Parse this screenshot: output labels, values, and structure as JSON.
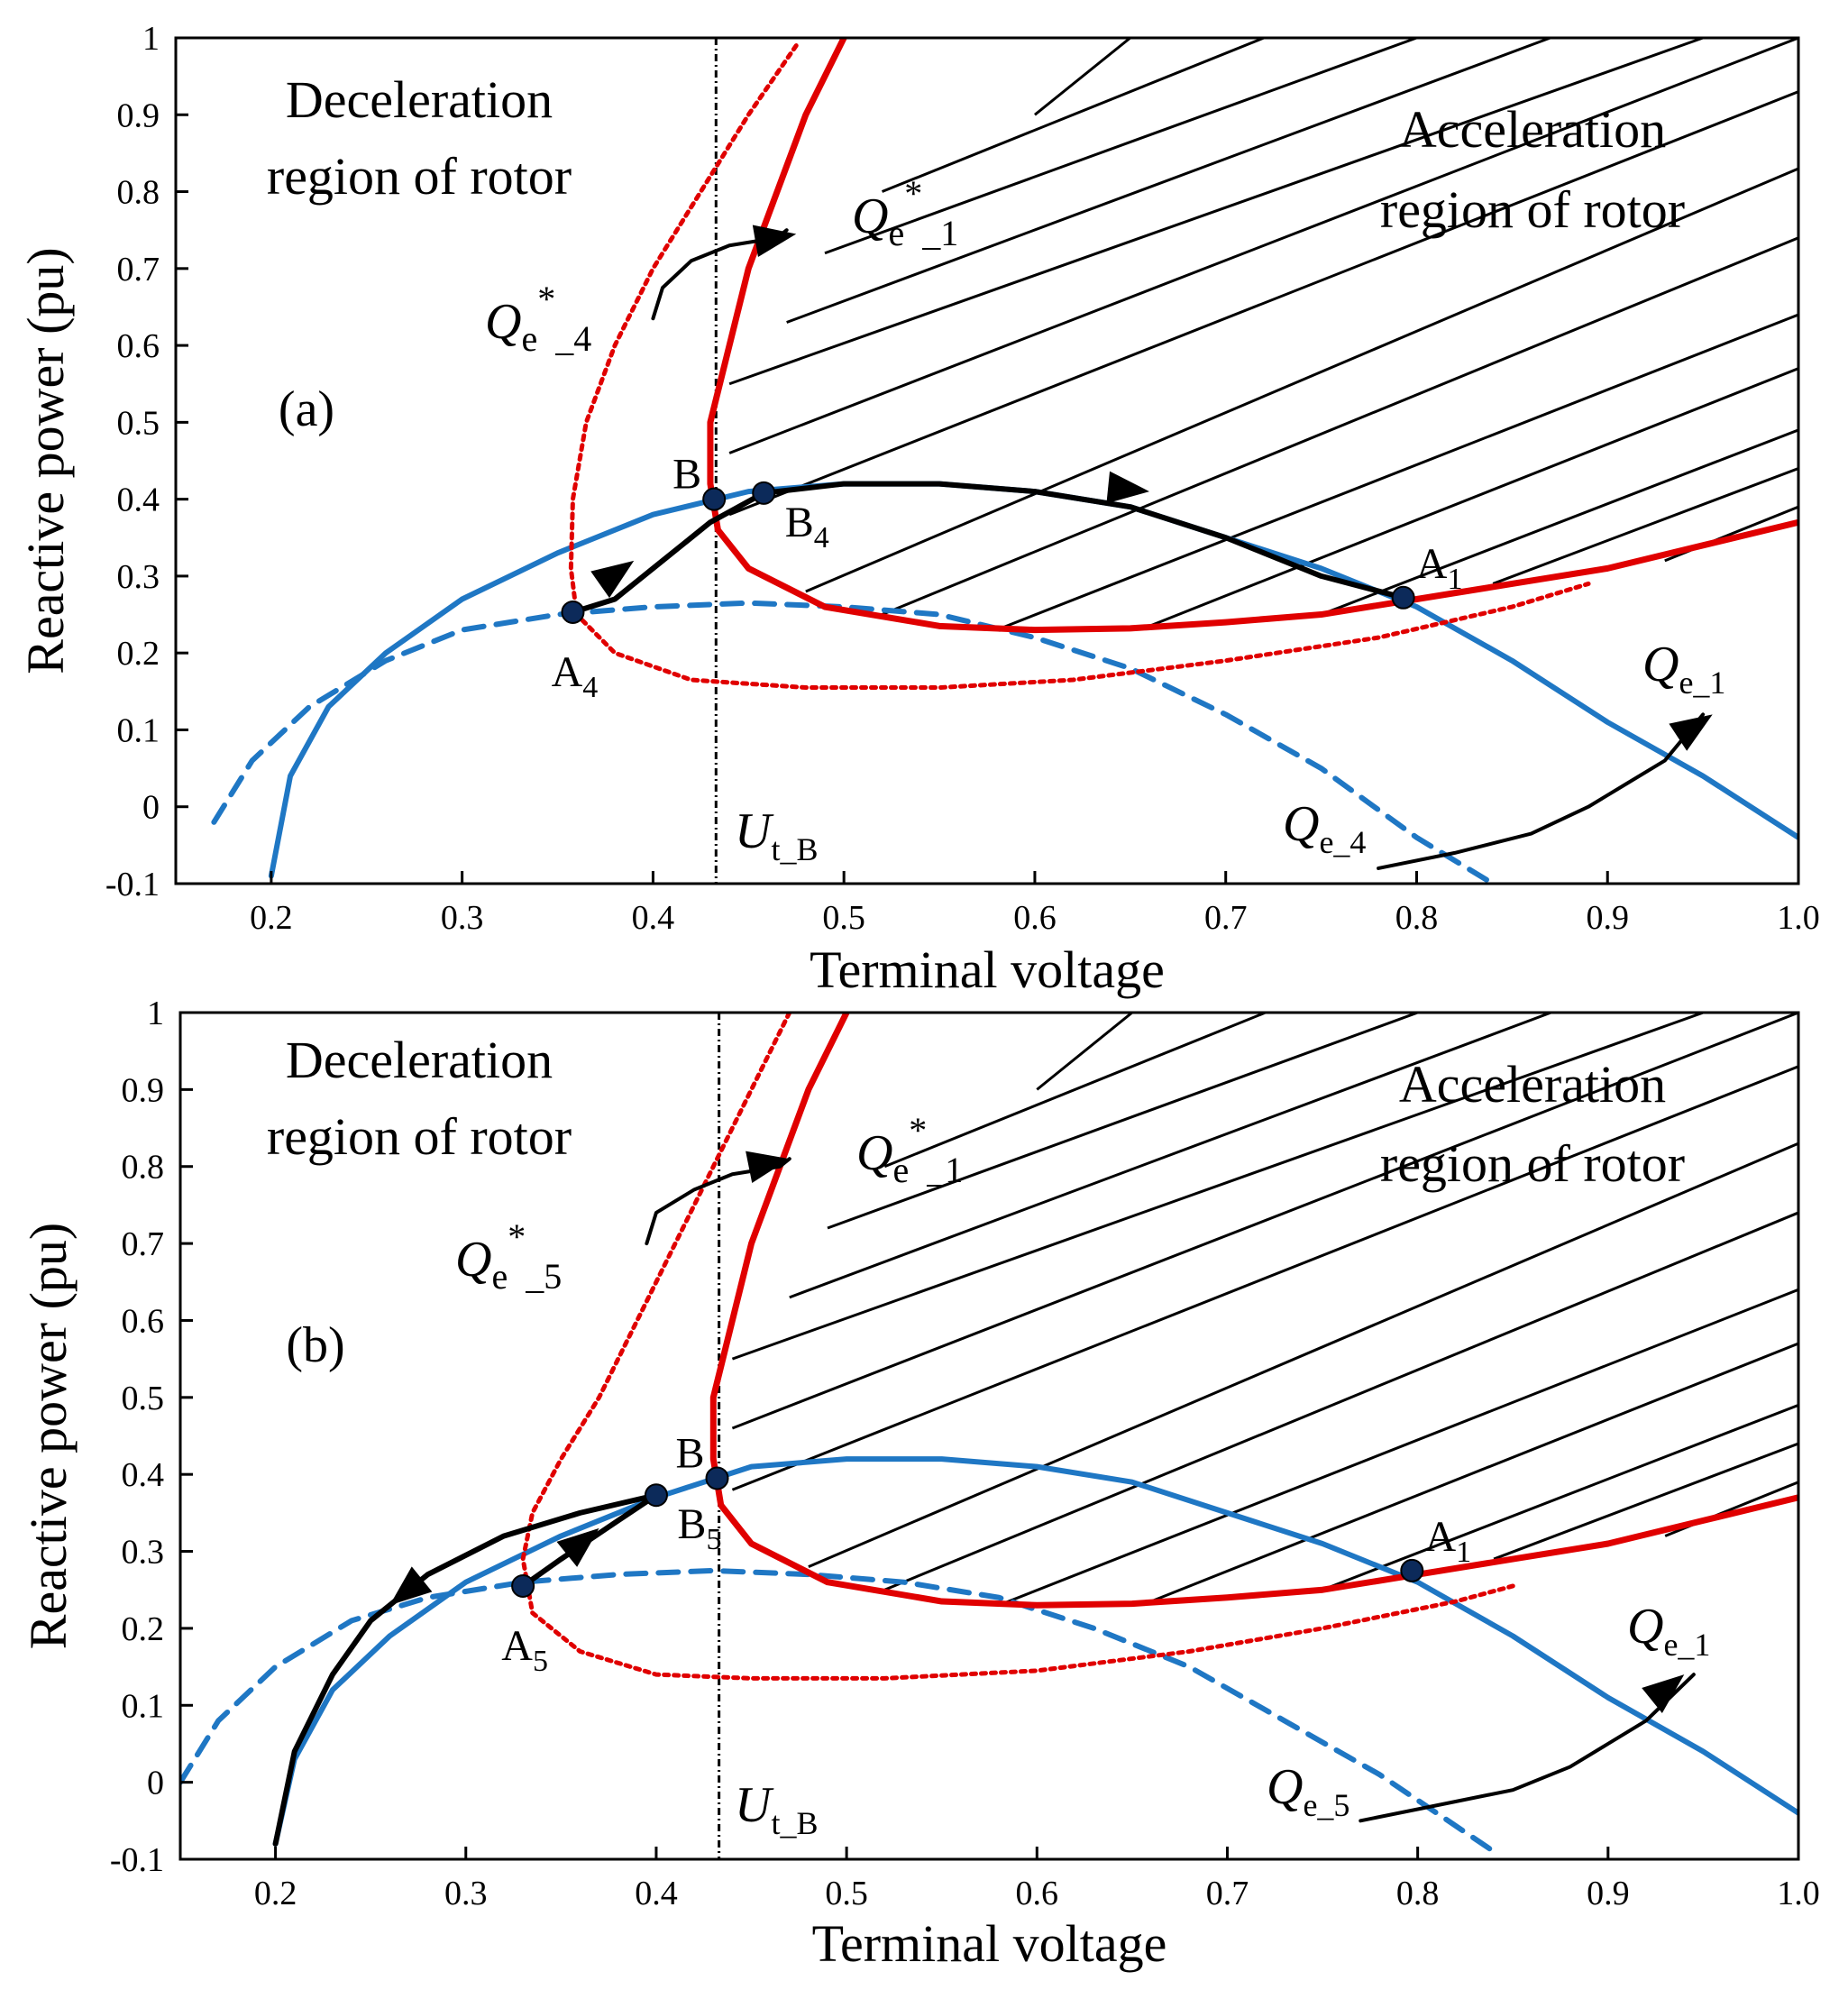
{
  "chart_data": [
    {
      "type": "line",
      "panel_label": "(a)",
      "xlabel": "Terminal voltage",
      "ylabel": "Reactive power (pu)",
      "xlim": [
        0.15,
        1.0
      ],
      "ylim": [
        -0.1,
        1.0
      ],
      "x_ticks": [
        "0.2",
        "0.3",
        "0.4",
        "0.5",
        "0.6",
        "0.7",
        "0.8",
        "0.9",
        "1.0"
      ],
      "y_ticks": [
        "1",
        "0.9",
        "0.8",
        "0.7",
        "0.6",
        "0.5",
        "0.4",
        "0.3",
        "0.2",
        "0.1",
        "0",
        "-0.1"
      ],
      "region_labels": {
        "deceleration": [
          "Deceleration",
          "region of rotor"
        ],
        "acceleration": [
          "Acceleration",
          "region of rotor"
        ]
      },
      "curve_labels": {
        "qe_star_1": {
          "main": "Q",
          "sub1": "e",
          "sup": "*",
          "sub2": "_1"
        },
        "qe_star_k": {
          "main": "Q",
          "sub1": "e",
          "sup": "*",
          "sub2": "_4"
        },
        "qe_1": {
          "main": "Q",
          "sub": "e_1"
        },
        "qe_k": {
          "main": "Q",
          "sub": "e_4"
        },
        "ut_b": {
          "main": "U",
          "sub": "t_B"
        }
      },
      "point_labels": {
        "B": "B",
        "Bk": {
          "main": "B",
          "sub": "4"
        },
        "A1": {
          "main": "A",
          "sub": "1"
        },
        "Ak": {
          "main": "A",
          "sub": "4"
        }
      },
      "vline_x": 0.433,
      "points": {
        "B": [
          0.432,
          0.4
        ],
        "Bk": [
          0.458,
          0.408
        ],
        "A1": [
          0.793,
          0.272
        ],
        "Ak": [
          0.358,
          0.253
        ]
      },
      "series": [
        {
          "key": "qe_1",
          "color": "#1f77c4",
          "style": "solid",
          "x": [
            0.2,
            0.21,
            0.23,
            0.26,
            0.3,
            0.35,
            0.4,
            0.45,
            0.5,
            0.55,
            0.6,
            0.65,
            0.7,
            0.75,
            0.8,
            0.85,
            0.9,
            0.95,
            1.0
          ],
          "y": [
            -0.09,
            0.04,
            0.13,
            0.2,
            0.27,
            0.33,
            0.38,
            0.41,
            0.42,
            0.42,
            0.41,
            0.39,
            0.35,
            0.31,
            0.26,
            0.19,
            0.11,
            0.04,
            -0.04
          ]
        },
        {
          "key": "qe_k",
          "color": "#1f77c4",
          "style": "dash",
          "x": [
            0.17,
            0.19,
            0.22,
            0.26,
            0.3,
            0.35,
            0.4,
            0.45,
            0.5,
            0.55,
            0.6,
            0.65,
            0.7,
            0.75,
            0.8,
            0.84
          ],
          "y": [
            -0.02,
            0.06,
            0.13,
            0.19,
            0.23,
            0.25,
            0.26,
            0.265,
            0.26,
            0.25,
            0.22,
            0.18,
            0.12,
            0.05,
            -0.04,
            -0.1
          ]
        },
        {
          "key": "qe_star_1",
          "color": "#e00000",
          "style": "solid",
          "x": [
            0.5,
            0.48,
            0.465,
            0.45,
            0.44,
            0.43,
            0.43,
            0.434,
            0.45,
            0.49,
            0.55,
            0.6,
            0.65,
            0.7,
            0.75,
            0.8,
            0.85,
            0.9,
            0.95,
            1.0
          ],
          "y": [
            1.0,
            0.9,
            0.8,
            0.7,
            0.6,
            0.5,
            0.42,
            0.36,
            0.31,
            0.26,
            0.235,
            0.23,
            0.232,
            0.24,
            0.25,
            0.27,
            0.29,
            0.31,
            0.34,
            0.37
          ]
        },
        {
          "key": "qe_star_k",
          "color": "#e00000",
          "style": "dot",
          "x": [
            0.475,
            0.45,
            0.425,
            0.4,
            0.38,
            0.365,
            0.358,
            0.357,
            0.36,
            0.38,
            0.42,
            0.48,
            0.55,
            0.62,
            0.7,
            0.78,
            0.85,
            0.89
          ],
          "y": [
            0.99,
            0.9,
            0.8,
            0.7,
            0.6,
            0.5,
            0.4,
            0.31,
            0.25,
            0.2,
            0.165,
            0.155,
            0.155,
            0.165,
            0.19,
            0.22,
            0.26,
            0.29
          ]
        },
        {
          "key": "trajectory",
          "color": "#000000",
          "style": "solid",
          "x": [
            0.358,
            0.38,
            0.4,
            0.43,
            0.458,
            0.5,
            0.55,
            0.6,
            0.65,
            0.7,
            0.75,
            0.793
          ],
          "y": [
            0.253,
            0.27,
            0.31,
            0.37,
            0.408,
            0.42,
            0.42,
            0.41,
            0.39,
            0.35,
            0.3,
            0.272
          ]
        },
        {
          "key": "arrow_qe1",
          "color": "#000000",
          "style": "solid",
          "x": [
            0.78,
            0.82,
            0.86,
            0.89,
            0.91,
            0.93,
            0.95
          ],
          "y": [
            -0.08,
            -0.06,
            -0.035,
            0.0,
            0.03,
            0.06,
            0.12
          ]
        },
        {
          "key": "arrow_qestar1",
          "color": "#000000",
          "style": "solid",
          "x": [
            0.4,
            0.405,
            0.42,
            0.44,
            0.465,
            0.47
          ],
          "y": [
            0.635,
            0.675,
            0.71,
            0.73,
            0.74,
            0.75
          ]
        }
      ],
      "arrowheads": [
        [
          0.35,
          0.25,
          0.39,
          0.32,
          "trajectory"
        ],
        [
          0.62,
          0.42,
          0.66,
          0.41,
          "trajectory"
        ],
        [
          0.9,
          0.03,
          0.955,
          0.12,
          "qe"
        ],
        [
          0.44,
          0.73,
          0.475,
          0.745,
          "qe"
        ]
      ],
      "hatch_lines": [
        [
          [
            0.44,
            0.38
          ],
          [
            1.0,
            0.93
          ]
        ],
        [
          [
            0.44,
            0.46
          ],
          [
            1.0,
            1.0
          ]
        ],
        [
          [
            0.44,
            0.55
          ],
          [
            0.95,
            1.0
          ]
        ],
        [
          [
            0.47,
            0.63
          ],
          [
            0.87,
            1.0
          ]
        ],
        [
          [
            0.49,
            0.72
          ],
          [
            0.8,
            1.0
          ]
        ],
        [
          [
            0.52,
            0.8
          ],
          [
            0.72,
            1.0
          ]
        ],
        [
          [
            0.6,
            0.9
          ],
          [
            0.65,
            1.0
          ]
        ],
        [
          [
            0.48,
            0.28
          ],
          [
            1.0,
            0.83
          ]
        ],
        [
          [
            0.52,
            0.25
          ],
          [
            1.0,
            0.74
          ]
        ],
        [
          [
            0.58,
            0.23
          ],
          [
            1.0,
            0.64
          ]
        ],
        [
          [
            0.66,
            0.235
          ],
          [
            1.0,
            0.57
          ]
        ],
        [
          [
            0.75,
            0.25
          ],
          [
            1.0,
            0.49
          ]
        ],
        [
          [
            0.84,
            0.29
          ],
          [
            1.0,
            0.44
          ]
        ],
        [
          [
            0.93,
            0.32
          ],
          [
            1.0,
            0.39
          ]
        ]
      ]
    },
    {
      "type": "line",
      "panel_label": "(b)",
      "xlabel": "Terminal voltage",
      "ylabel": "Reactive power (pu)",
      "xlim": [
        0.15,
        1.0
      ],
      "ylim": [
        -0.1,
        1.0
      ],
      "x_ticks": [
        "0.2",
        "0.3",
        "0.4",
        "0.5",
        "0.6",
        "0.7",
        "0.8",
        "0.9",
        "1.0"
      ],
      "y_ticks": [
        "1",
        "0.9",
        "0.8",
        "0.7",
        "0.6",
        "0.5",
        "0.4",
        "0.3",
        "0.2",
        "0.1",
        "0",
        "-0.1"
      ],
      "region_labels": {
        "deceleration": [
          "Deceleration",
          "region of rotor"
        ],
        "acceleration": [
          "Acceleration",
          "region of rotor"
        ]
      },
      "curve_labels": {
        "qe_star_1": {
          "main": "Q",
          "sub1": "e",
          "sup": "*",
          "sub2": "_1"
        },
        "qe_star_k": {
          "main": "Q",
          "sub1": "e",
          "sup": "*",
          "sub2": "_5"
        },
        "qe_1": {
          "main": "Q",
          "sub": "e_1"
        },
        "qe_k": {
          "main": "Q",
          "sub": "e_5"
        },
        "ut_b": {
          "main": "U",
          "sub": "t_B"
        }
      },
      "point_labels": {
        "B": "B",
        "Bk": {
          "main": "B",
          "sub": "5"
        },
        "A1": {
          "main": "A",
          "sub": "1"
        },
        "Ak": {
          "main": "A",
          "sub": "5"
        }
      },
      "vline_x": 0.433,
      "points": {
        "B": [
          0.432,
          0.395
        ],
        "Bk": [
          0.4,
          0.373
        ],
        "A1": [
          0.797,
          0.275
        ],
        "Ak": [
          0.33,
          0.255
        ]
      },
      "series": [
        {
          "key": "qe_1",
          "color": "#1f77c4",
          "style": "solid",
          "x": [
            0.2,
            0.21,
            0.23,
            0.26,
            0.3,
            0.35,
            0.4,
            0.45,
            0.5,
            0.55,
            0.6,
            0.65,
            0.7,
            0.75,
            0.8,
            0.85,
            0.9,
            0.95,
            1.0
          ],
          "y": [
            -0.08,
            0.03,
            0.12,
            0.19,
            0.26,
            0.32,
            0.37,
            0.41,
            0.42,
            0.42,
            0.41,
            0.39,
            0.35,
            0.31,
            0.26,
            0.19,
            0.11,
            0.04,
            -0.04
          ]
        },
        {
          "key": "qe_k",
          "color": "#1f77c4",
          "style": "dash",
          "x": [
            0.15,
            0.17,
            0.2,
            0.24,
            0.28,
            0.33,
            0.38,
            0.43,
            0.48,
            0.53,
            0.58,
            0.63,
            0.68,
            0.73,
            0.78,
            0.84
          ],
          "y": [
            0.0,
            0.08,
            0.15,
            0.21,
            0.24,
            0.26,
            0.27,
            0.275,
            0.27,
            0.26,
            0.24,
            0.2,
            0.15,
            0.08,
            0.01,
            -0.09
          ]
        },
        {
          "key": "qe_star_1",
          "color": "#e00000",
          "style": "solid",
          "x": [
            0.5,
            0.48,
            0.465,
            0.45,
            0.44,
            0.43,
            0.43,
            0.434,
            0.45,
            0.49,
            0.55,
            0.6,
            0.65,
            0.7,
            0.75,
            0.8,
            0.85,
            0.9,
            0.95,
            1.0
          ],
          "y": [
            1.0,
            0.9,
            0.8,
            0.7,
            0.6,
            0.5,
            0.42,
            0.36,
            0.31,
            0.26,
            0.235,
            0.23,
            0.232,
            0.24,
            0.25,
            0.27,
            0.29,
            0.31,
            0.34,
            0.37
          ]
        },
        {
          "key": "qe_star_k",
          "color": "#e00000",
          "style": "dot",
          "x": [
            0.47,
            0.45,
            0.43,
            0.41,
            0.39,
            0.37,
            0.35,
            0.335,
            0.33,
            0.335,
            0.36,
            0.4,
            0.45,
            0.52,
            0.6,
            0.68,
            0.75,
            0.82,
            0.85
          ],
          "y": [
            1.0,
            0.9,
            0.8,
            0.7,
            0.6,
            0.5,
            0.42,
            0.35,
            0.29,
            0.22,
            0.17,
            0.14,
            0.135,
            0.135,
            0.145,
            0.17,
            0.2,
            0.235,
            0.255
          ]
        },
        {
          "key": "trajectory",
          "color": "#000000",
          "style": "solid",
          "x": [
            0.33,
            0.35,
            0.38,
            0.4
          ],
          "y": [
            0.255,
            0.29,
            0.34,
            0.373
          ]
        },
        {
          "key": "trajectory2",
          "color": "#000000",
          "style": "solid",
          "x": [
            0.4,
            0.36,
            0.32,
            0.28,
            0.25,
            0.23,
            0.21,
            0.2
          ],
          "y": [
            0.373,
            0.35,
            0.32,
            0.27,
            0.21,
            0.14,
            0.04,
            -0.08
          ]
        },
        {
          "key": "arrow_qe1",
          "color": "#000000",
          "style": "solid",
          "x": [
            0.77,
            0.81,
            0.85,
            0.88,
            0.9,
            0.92,
            0.945
          ],
          "y": [
            -0.05,
            -0.03,
            -0.01,
            0.02,
            0.05,
            0.08,
            0.14
          ]
        },
        {
          "key": "arrow_qestar1",
          "color": "#000000",
          "style": "solid",
          "x": [
            0.395,
            0.4,
            0.42,
            0.44,
            0.465,
            0.47
          ],
          "y": [
            0.7,
            0.74,
            0.77,
            0.79,
            0.8,
            0.81
          ]
        }
      ],
      "arrowheads": [
        [
          0.35,
          0.29,
          0.37,
          0.33,
          "trajectory"
        ],
        [
          0.28,
          0.27,
          0.26,
          0.23,
          "trajectory"
        ],
        [
          0.89,
          0.04,
          0.94,
          0.14,
          "qe"
        ],
        [
          0.43,
          0.79,
          0.47,
          0.81,
          "qe"
        ]
      ],
      "hatch_lines": [
        [
          [
            0.44,
            0.38
          ],
          [
            1.0,
            0.93
          ]
        ],
        [
          [
            0.44,
            0.46
          ],
          [
            1.0,
            1.0
          ]
        ],
        [
          [
            0.44,
            0.55
          ],
          [
            0.95,
            1.0
          ]
        ],
        [
          [
            0.47,
            0.63
          ],
          [
            0.87,
            1.0
          ]
        ],
        [
          [
            0.49,
            0.72
          ],
          [
            0.8,
            1.0
          ]
        ],
        [
          [
            0.52,
            0.8
          ],
          [
            0.72,
            1.0
          ]
        ],
        [
          [
            0.6,
            0.9
          ],
          [
            0.65,
            1.0
          ]
        ],
        [
          [
            0.48,
            0.28
          ],
          [
            1.0,
            0.83
          ]
        ],
        [
          [
            0.52,
            0.25
          ],
          [
            1.0,
            0.74
          ]
        ],
        [
          [
            0.58,
            0.23
          ],
          [
            1.0,
            0.64
          ]
        ],
        [
          [
            0.66,
            0.235
          ],
          [
            1.0,
            0.57
          ]
        ],
        [
          [
            0.75,
            0.25
          ],
          [
            1.0,
            0.49
          ]
        ],
        [
          [
            0.84,
            0.29
          ],
          [
            1.0,
            0.44
          ]
        ],
        [
          [
            0.93,
            0.32
          ],
          [
            1.0,
            0.39
          ]
        ]
      ]
    }
  ]
}
